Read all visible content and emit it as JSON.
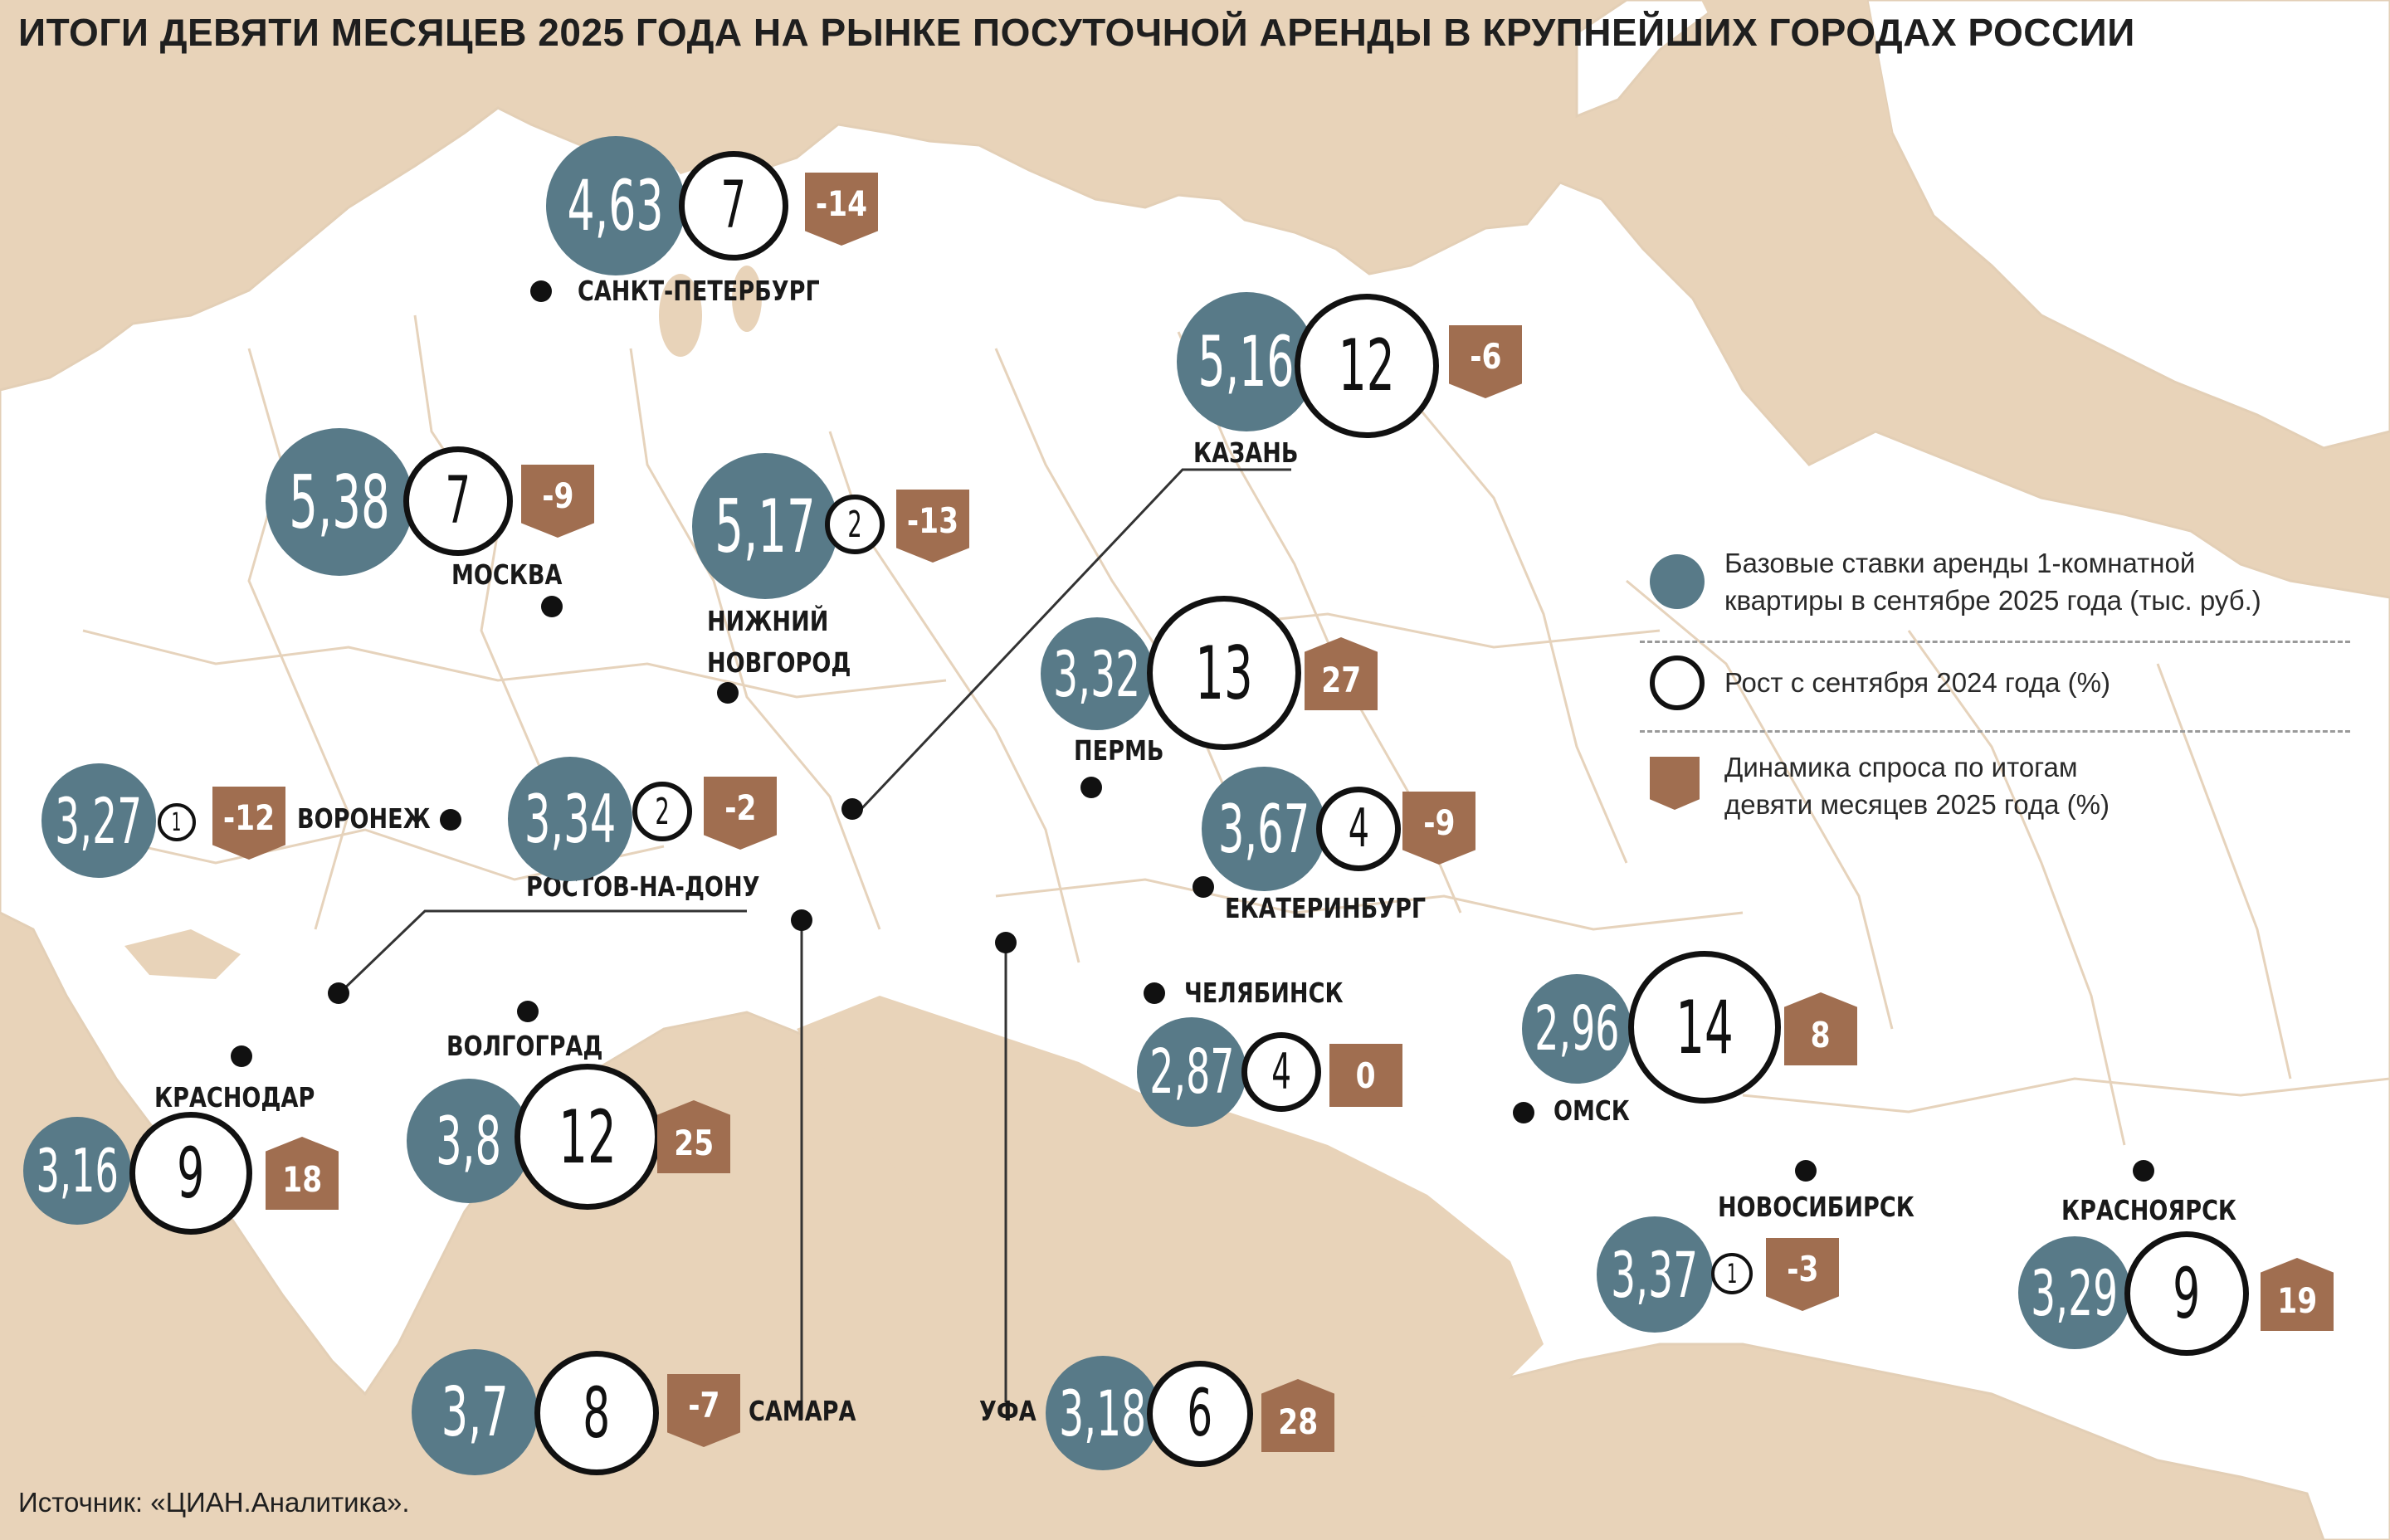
{
  "title": "ИТОГИ ДЕВЯТИ МЕСЯЦЕВ 2025 ГОДА НА РЫНКЕ ПОСУТОЧНОЙ АРЕНДЫ В КРУПНЕЙШИХ ГОРОДАХ РОССИИ",
  "source": "Источник: «ЦИАН.Аналитика».",
  "colors": {
    "background": "#e8d3b9",
    "land": "#ffffff",
    "rate_circle": "#587a88",
    "growth_ring": "#111111",
    "demand_badge": "#a06e50",
    "border_lines": "#e3cfb6"
  },
  "legend": {
    "rate_line1": "Базовые ставки аренды 1-комнатной",
    "rate_line2": "квартиры в сентябре 2025 года (тыс. руб.)",
    "growth_text": "Рост с сентября 2024 года (%)",
    "demand_line1": "Динамика спроса по итогам",
    "demand_line2": "девяти месяцев 2025 года (%)"
  },
  "cities": [
    {
      "name": "САНКТ-ПЕТЕРБУРГ",
      "rate": "4,63",
      "growth": "7",
      "demand": "-14"
    },
    {
      "name": "КАЗАНЬ",
      "rate": "5,16",
      "growth": "12",
      "demand": "-6"
    },
    {
      "name": "МОСКВА",
      "rate": "5,38",
      "growth": "7",
      "demand": "-9"
    },
    {
      "name_line1": "НИЖНИЙ",
      "name_line2": "НОВГОРОД",
      "rate": "5,17",
      "growth": "2",
      "demand": "-13"
    },
    {
      "name": "ПЕРМЬ",
      "rate": "3,32",
      "growth": "13",
      "demand": "27"
    },
    {
      "name": "ВОРОНЕЖ",
      "rate": "3,27",
      "growth": "1",
      "demand": "-12"
    },
    {
      "name": "РОСТОВ-НА-ДОНУ",
      "rate": "3,34",
      "growth": "2",
      "demand": "-2"
    },
    {
      "name": "ЕКАТЕРИНБУРГ",
      "rate": "3,67",
      "growth": "4",
      "demand": "-9"
    },
    {
      "name": "ЧЕЛЯБИНСК",
      "rate": "2,87",
      "growth": "4",
      "demand": "0"
    },
    {
      "name": "ОМСК",
      "rate": "2,96",
      "growth": "14",
      "demand": "8"
    },
    {
      "name": "ВОЛГОГРАД",
      "rate": "3,8",
      "growth": "12",
      "demand": "25"
    },
    {
      "name": "КРАСНОДАР",
      "rate": "3,16",
      "growth": "9",
      "demand": "18"
    },
    {
      "name": "НОВОСИБИРСК",
      "rate": "3,37",
      "growth": "1",
      "demand": "-3"
    },
    {
      "name": "КРАСНОЯРСК",
      "rate": "3,29",
      "growth": "9",
      "demand": "19"
    },
    {
      "name": "САМАРА",
      "rate": "3,7",
      "growth": "8",
      "demand": "-7"
    },
    {
      "name": "УФА",
      "rate": "3,18",
      "growth": "6",
      "demand": "28"
    }
  ]
}
